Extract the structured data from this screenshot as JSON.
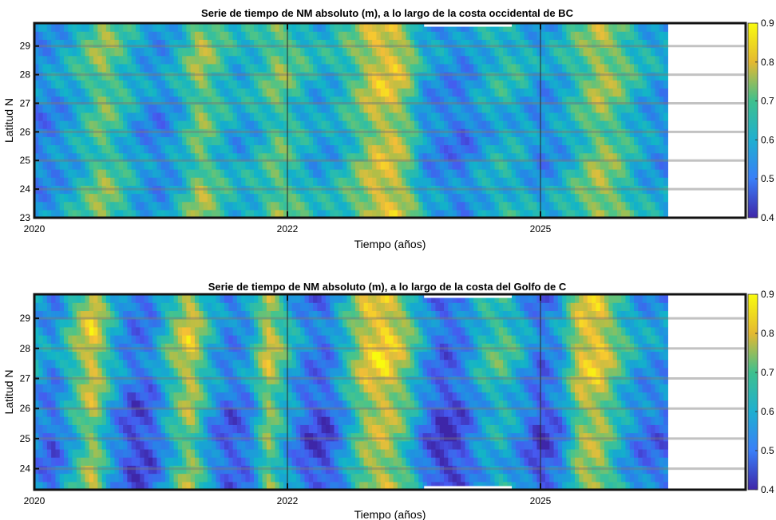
{
  "chart_data": [
    {
      "type": "heatmap",
      "title": "Serie de tiempo de NM absoluto (m), a lo largo de la costa occidental de BC",
      "xlabel": "Tiempo (años)",
      "ylabel": "Latitud N",
      "xlim": [
        2020.0,
        2027.3
      ],
      "ylim": [
        23.0,
        29.8
      ],
      "x_ticks": [
        "2020",
        "2022",
        "2025"
      ],
      "y_ticks": [
        23,
        24,
        25,
        26,
        27,
        28,
        29
      ],
      "data_end": 2026.5,
      "gap": [
        2024.0,
        2024.9
      ],
      "colorbar": {
        "min": 0.4,
        "max": 0.9,
        "ticks": [
          "0.4",
          "0.5",
          "0.6",
          "0.7",
          "0.8",
          "0.9"
        ],
        "colormap": "parula"
      },
      "grid": true,
      "time_profile": [
        {
          "t": 2020.0,
          "v": 0.54
        },
        {
          "t": 2020.2,
          "v": 0.56
        },
        {
          "t": 2020.4,
          "v": 0.61
        },
        {
          "t": 2020.7,
          "v": 0.73
        },
        {
          "t": 2020.9,
          "v": 0.66
        },
        {
          "t": 2021.1,
          "v": 0.58
        },
        {
          "t": 2021.3,
          "v": 0.55
        },
        {
          "t": 2021.5,
          "v": 0.62
        },
        {
          "t": 2021.7,
          "v": 0.75
        },
        {
          "t": 2021.9,
          "v": 0.66
        },
        {
          "t": 2022.1,
          "v": 0.6
        },
        {
          "t": 2022.3,
          "v": 0.64
        },
        {
          "t": 2022.5,
          "v": 0.72
        },
        {
          "t": 2022.7,
          "v": 0.66
        },
        {
          "t": 2022.9,
          "v": 0.6
        },
        {
          "t": 2023.1,
          "v": 0.62
        },
        {
          "t": 2023.3,
          "v": 0.7
        },
        {
          "t": 2023.5,
          "v": 0.8
        },
        {
          "t": 2023.7,
          "v": 0.8
        },
        {
          "t": 2023.85,
          "v": 0.72
        },
        {
          "t": 2024.0,
          "v": 0.58
        },
        {
          "t": 2024.2,
          "v": 0.55
        },
        {
          "t": 2024.4,
          "v": 0.53
        },
        {
          "t": 2024.6,
          "v": 0.6
        },
        {
          "t": 2024.8,
          "v": 0.64
        },
        {
          "t": 2025.0,
          "v": 0.62
        },
        {
          "t": 2025.2,
          "v": 0.56
        },
        {
          "t": 2025.4,
          "v": 0.6
        },
        {
          "t": 2025.6,
          "v": 0.68
        },
        {
          "t": 2025.8,
          "v": 0.76
        },
        {
          "t": 2026.0,
          "v": 0.71
        },
        {
          "t": 2026.2,
          "v": 0.62
        },
        {
          "t": 2026.4,
          "v": 0.58
        },
        {
          "t": 2026.5,
          "v": 0.57
        }
      ]
    },
    {
      "type": "heatmap",
      "title": "Serie de tiempo de NM absoluto (m), a lo largo de la costa del Golfo de C",
      "xlabel": "Tiempo (años)",
      "ylabel": "Latitud N",
      "xlim": [
        2020.0,
        2027.3
      ],
      "ylim": [
        23.3,
        29.8
      ],
      "x_ticks": [
        "2020",
        "2022",
        "2025"
      ],
      "y_ticks": [
        24,
        25,
        26,
        27,
        28,
        29
      ],
      "data_end": 2026.5,
      "gap": [
        2024.0,
        2024.9
      ],
      "colorbar": {
        "min": 0.4,
        "max": 0.9,
        "ticks": [
          "0.4",
          "0.5",
          "0.6",
          "0.7",
          "0.8",
          "0.9"
        ],
        "colormap": "parula"
      },
      "grid": true,
      "time_profile": [
        {
          "t": 2020.0,
          "v": 0.58
        },
        {
          "t": 2020.2,
          "v": 0.52
        },
        {
          "t": 2020.4,
          "v": 0.66
        },
        {
          "t": 2020.6,
          "v": 0.8
        },
        {
          "t": 2020.8,
          "v": 0.6
        },
        {
          "t": 2021.0,
          "v": 0.48
        },
        {
          "t": 2021.2,
          "v": 0.5
        },
        {
          "t": 2021.4,
          "v": 0.66
        },
        {
          "t": 2021.6,
          "v": 0.79
        },
        {
          "t": 2021.8,
          "v": 0.6
        },
        {
          "t": 2022.0,
          "v": 0.5
        },
        {
          "t": 2022.2,
          "v": 0.55
        },
        {
          "t": 2022.4,
          "v": 0.77
        },
        {
          "t": 2022.6,
          "v": 0.62
        },
        {
          "t": 2022.8,
          "v": 0.5
        },
        {
          "t": 2023.0,
          "v": 0.48
        },
        {
          "t": 2023.2,
          "v": 0.62
        },
        {
          "t": 2023.4,
          "v": 0.78
        },
        {
          "t": 2023.6,
          "v": 0.82
        },
        {
          "t": 2023.8,
          "v": 0.72
        },
        {
          "t": 2024.0,
          "v": 0.55
        },
        {
          "t": 2024.2,
          "v": 0.45
        },
        {
          "t": 2024.4,
          "v": 0.5
        },
        {
          "t": 2024.6,
          "v": 0.62
        },
        {
          "t": 2024.8,
          "v": 0.66
        },
        {
          "t": 2025.0,
          "v": 0.58
        },
        {
          "t": 2025.2,
          "v": 0.47
        },
        {
          "t": 2025.4,
          "v": 0.55
        },
        {
          "t": 2025.6,
          "v": 0.78
        },
        {
          "t": 2025.8,
          "v": 0.8
        },
        {
          "t": 2026.0,
          "v": 0.66
        },
        {
          "t": 2026.2,
          "v": 0.56
        },
        {
          "t": 2026.4,
          "v": 0.54
        },
        {
          "t": 2026.5,
          "v": 0.54
        }
      ]
    }
  ]
}
